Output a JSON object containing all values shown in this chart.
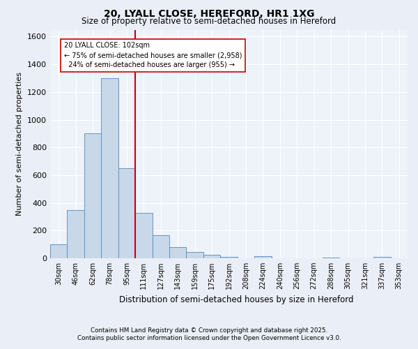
{
  "title1": "20, LYALL CLOSE, HEREFORD, HR1 1XG",
  "title2": "Size of property relative to semi-detached houses in Hereford",
  "xlabel": "Distribution of semi-detached houses by size in Hereford",
  "ylabel": "Number of semi-detached properties",
  "bin_labels": [
    "30sqm",
    "46sqm",
    "62sqm",
    "78sqm",
    "95sqm",
    "111sqm",
    "127sqm",
    "143sqm",
    "159sqm",
    "175sqm",
    "192sqm",
    "208sqm",
    "224sqm",
    "240sqm",
    "256sqm",
    "272sqm",
    "288sqm",
    "305sqm",
    "321sqm",
    "337sqm",
    "353sqm"
  ],
  "bar_values": [
    100,
    350,
    900,
    1300,
    650,
    330,
    165,
    80,
    45,
    25,
    12,
    0,
    15,
    0,
    0,
    0,
    5,
    0,
    0,
    8,
    0
  ],
  "bar_color": "#c8d8e8",
  "bar_edge_color": "#5588bb",
  "vline_x_idx": 4.5,
  "vline_color": "#cc0000",
  "annotation_text": "20 LYALL CLOSE: 102sqm\n← 75% of semi-detached houses are smaller (2,958)\n  24% of semi-detached houses are larger (955) →",
  "annotation_box_color": "#ffffff",
  "annotation_box_edge": "#cc0000",
  "ylim": [
    0,
    1650
  ],
  "yticks": [
    0,
    200,
    400,
    600,
    800,
    1000,
    1200,
    1400,
    1600
  ],
  "footer1": "Contains HM Land Registry data © Crown copyright and database right 2025.",
  "footer2": "Contains public sector information licensed under the Open Government Licence v3.0.",
  "bg_color": "#eaeff7",
  "plot_bg_color": "#eef3fa"
}
